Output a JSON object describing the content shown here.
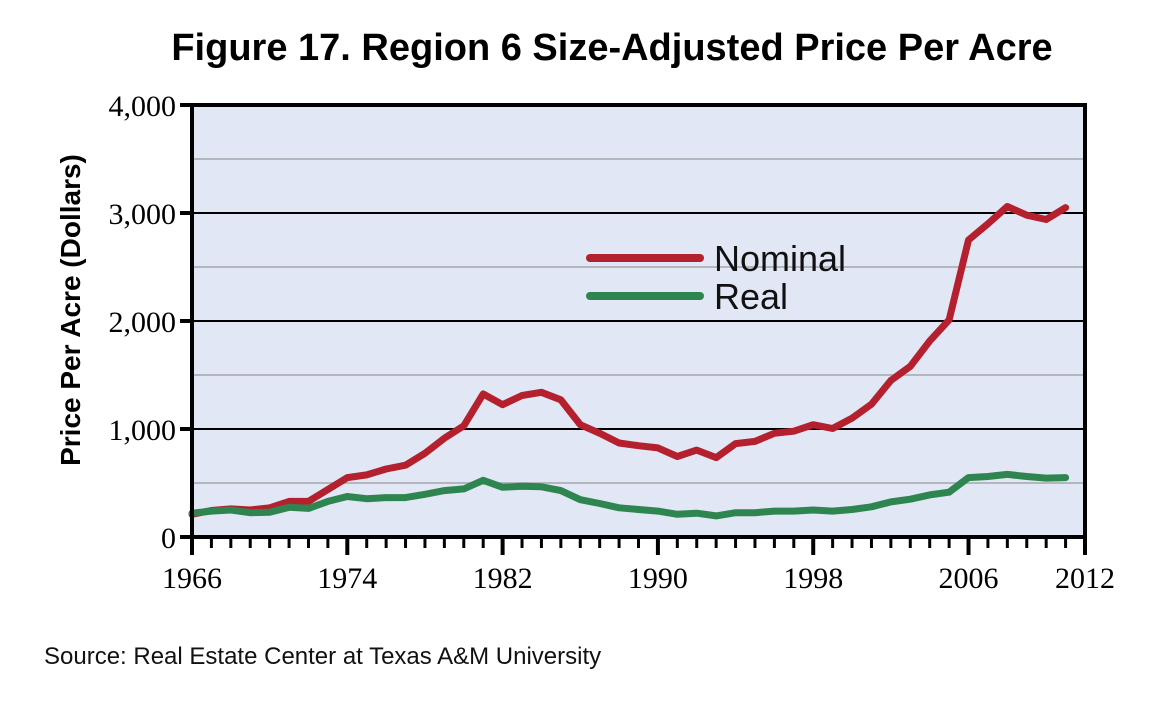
{
  "chart_data": {
    "type": "line",
    "title": "Figure 17. Region 6 Size-Adjusted Price Per Acre",
    "xlabel": "",
    "ylabel": "Price Per Acre (Dollars)",
    "xlim": [
      1966,
      2012
    ],
    "ylim": [
      0,
      4000
    ],
    "x_major_ticks": [
      1966,
      1974,
      1982,
      1990,
      1998,
      2006,
      2012
    ],
    "x_tick_labels": [
      "1966",
      "1974",
      "1982",
      "1990",
      "1998",
      "2006",
      "2012"
    ],
    "x_minor_tick_step": 1,
    "y_ticks": [
      0,
      1000,
      2000,
      3000,
      4000
    ],
    "y_tick_labels": [
      "0",
      "1,000",
      "2,000",
      "3,000",
      "4,000"
    ],
    "y_minor_gridlines": [
      500,
      1500,
      2500,
      3500
    ],
    "grid": true,
    "background_color": "#e1e7f5",
    "legend_position": "center",
    "x": [
      1966,
      1967,
      1968,
      1969,
      1970,
      1971,
      1972,
      1973,
      1974,
      1975,
      1976,
      1977,
      1978,
      1979,
      1980,
      1981,
      1982,
      1983,
      1984,
      1985,
      1986,
      1987,
      1988,
      1989,
      1990,
      1991,
      1992,
      1993,
      1994,
      1995,
      1996,
      1997,
      1998,
      1999,
      2000,
      2001,
      2002,
      2003,
      2004,
      2005,
      2006,
      2007,
      2008,
      2009,
      2010,
      2011
    ],
    "series": [
      {
        "name": "Nominal",
        "color": "#b5202e",
        "values": [
          210,
          245,
          260,
          250,
          270,
          330,
          330,
          440,
          550,
          575,
          630,
          665,
          775,
          915,
          1030,
          1325,
          1225,
          1310,
          1340,
          1270,
          1040,
          960,
          870,
          845,
          825,
          745,
          805,
          735,
          865,
          885,
          960,
          980,
          1040,
          1005,
          1100,
          1230,
          1450,
          1580,
          1815,
          2010,
          2750,
          2900,
          3060,
          2980,
          2940,
          3050
        ]
      },
      {
        "name": "Real",
        "color": "#2e8550",
        "values": [
          220,
          240,
          250,
          225,
          230,
          275,
          265,
          330,
          375,
          355,
          365,
          365,
          395,
          430,
          445,
          525,
          460,
          470,
          465,
          430,
          345,
          310,
          270,
          255,
          240,
          210,
          220,
          195,
          225,
          225,
          240,
          240,
          250,
          240,
          255,
          280,
          325,
          350,
          390,
          415,
          550,
          560,
          580,
          560,
          545,
          550
        ]
      }
    ],
    "source_note": "Source: Real Estate Center at Texas A&M University"
  }
}
